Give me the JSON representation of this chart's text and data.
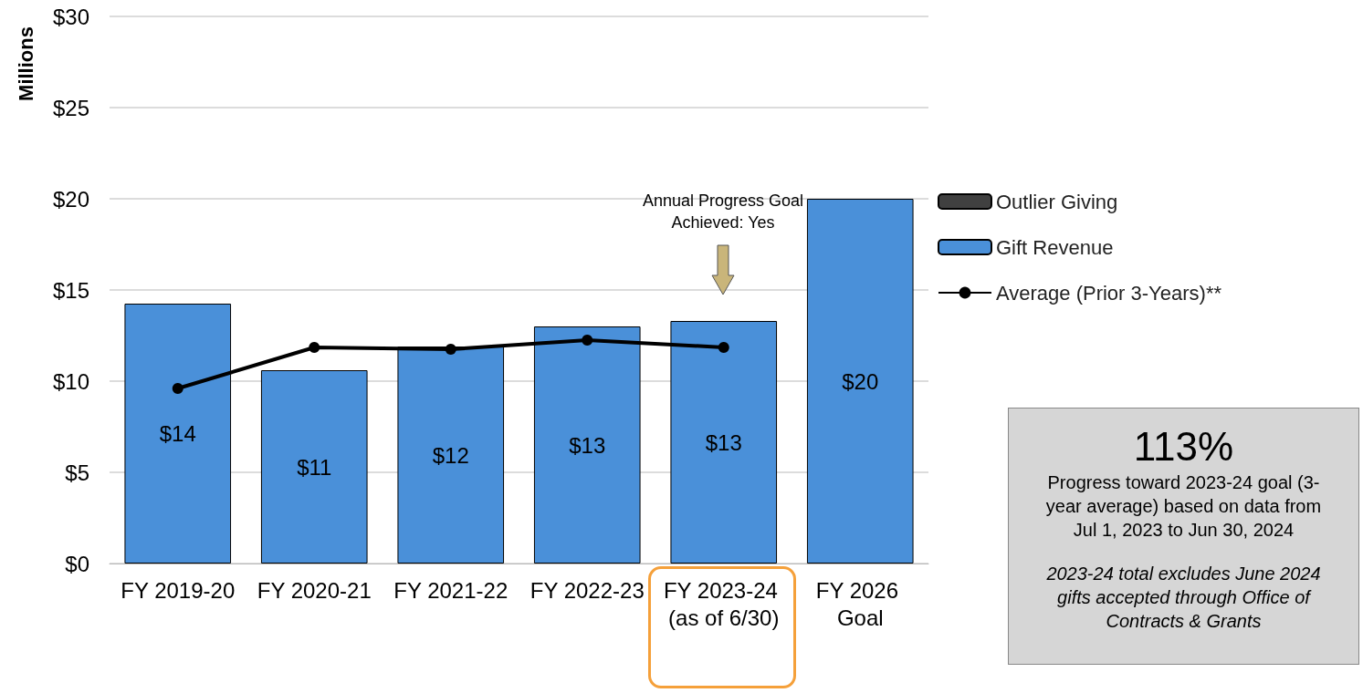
{
  "chart_data": {
    "type": "bar",
    "ylabel": "Millions",
    "categories": [
      "FY 2019-20",
      "FY 2020-21",
      "FY 2021-22",
      "FY 2022-23",
      "FY 2023-24 (as of 6/30)",
      "FY 2026 Goal"
    ],
    "series": [
      {
        "name": "Outlier Giving",
        "color": "#404040",
        "values": [
          null,
          null,
          null,
          null,
          null,
          null
        ]
      },
      {
        "name": "Gift Revenue",
        "color": "#4a90d9",
        "values": [
          14.25,
          10.6,
          11.9,
          13.0,
          13.3,
          20
        ],
        "value_labels": [
          "$14",
          "$11",
          "$12",
          "$13",
          "$13",
          "$20"
        ]
      },
      {
        "name": "Average (Prior 3-Years)**",
        "type": "line",
        "color": "#000000",
        "marker": "circle",
        "values": [
          9.6,
          11.85,
          11.75,
          12.25,
          11.85,
          null
        ]
      }
    ],
    "ylim": [
      0,
      30
    ],
    "yticks": [
      {
        "value": 0,
        "label": "$0"
      },
      {
        "value": 5,
        "label": "$5"
      },
      {
        "value": 10,
        "label": "$10"
      },
      {
        "value": 15,
        "label": "$15"
      },
      {
        "value": 20,
        "label": "$20"
      },
      {
        "value": 25,
        "label": "$25"
      },
      {
        "value": 30,
        "label": "$30"
      }
    ],
    "grid": "y",
    "legend": "right",
    "annotations": [
      "Annual Progress Goal Achieved: Yes",
      "113%",
      "Progress toward 2023-24 goal (3-year average) based on data from Jul 1, 2023 to Jun 30, 2024",
      "2023-24 total excludes June 2024 gifts accepted through Office of Contracts & Grants"
    ]
  }
}
